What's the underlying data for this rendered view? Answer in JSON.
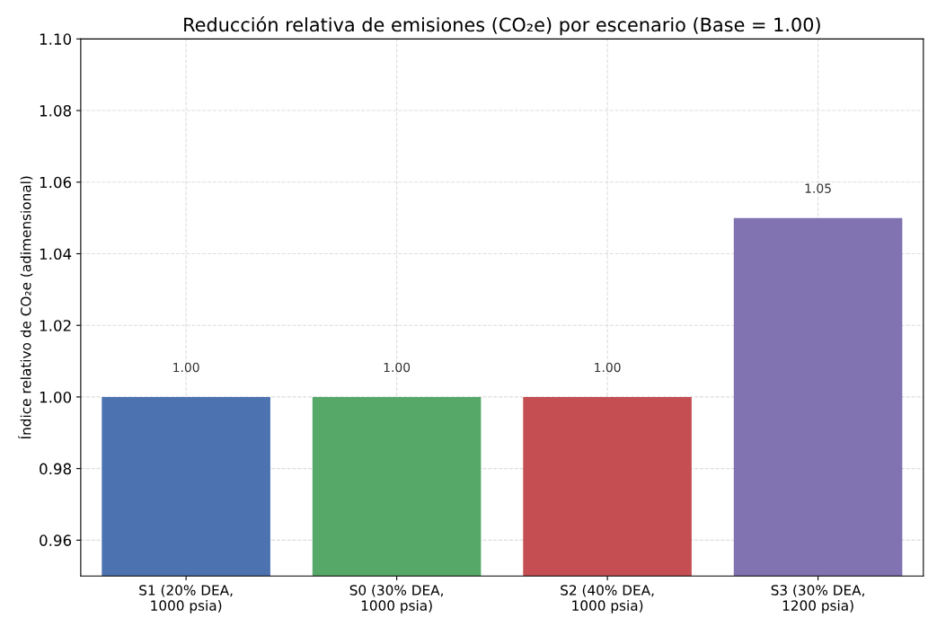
{
  "chart_data": {
    "type": "bar",
    "title": "Reducción relativa de emisiones (CO₂e) por escenario (Base = 1.00)",
    "ylabel": "Índice relativo de CO₂e (adimensional)",
    "categories": [
      "S1 (20% DEA,\n1000 psia)",
      "S0 (30% DEA,\n1000 psia)",
      "S2 (40% DEA,\n1000 psia)",
      "S3 (30% DEA,\n1200 psia)"
    ],
    "values": [
      1.0,
      1.0,
      1.0,
      1.05
    ],
    "colors": [
      "#4c72b0",
      "#55a868",
      "#c44e52",
      "#8172b2"
    ],
    "value_labels": [
      "1.00",
      "1.00",
      "1.00",
      "1.05"
    ],
    "ylim": [
      0.95,
      1.1
    ],
    "yticks": [
      {
        "value": 0.96,
        "label": "0.96"
      },
      {
        "value": 0.98,
        "label": "0.98"
      },
      {
        "value": 1.0,
        "label": "1.00"
      },
      {
        "value": 1.02,
        "label": "1.02"
      },
      {
        "value": 1.04,
        "label": "1.04"
      },
      {
        "value": 1.06,
        "label": "1.06"
      },
      {
        "value": 1.08,
        "label": "1.08"
      },
      {
        "value": 1.1,
        "label": "1.10"
      }
    ],
    "grid": true
  }
}
